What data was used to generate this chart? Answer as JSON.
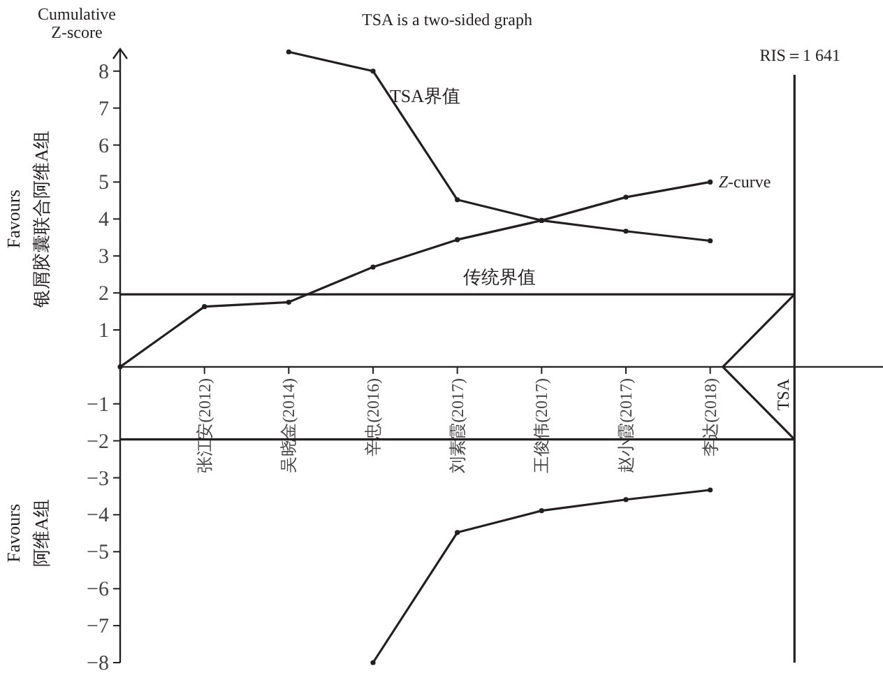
{
  "chart_data": {
    "type": "line",
    "title": "TSA is a two-sided graph",
    "ylabel": "Cumulative Z-score",
    "annotations": [
      "Favours 银屑胶囊联合阿维A组",
      "Favours 阿维A组",
      "TSA"
    ],
    "categories": [
      null,
      "张江安(2012)",
      "吴晓金(2014)",
      "辛忠(2016)",
      "刘素霞(2017)",
      "王俊伟(2017)",
      "赵小霞(2017)",
      "李达(2018)",
      null
    ],
    "ylim": [
      -8,
      8.6
    ],
    "yticks": [
      -8,
      -7,
      -6,
      -5,
      -4,
      -3,
      -2,
      -1,
      1,
      2,
      3,
      4,
      5,
      6,
      7,
      8
    ],
    "series": [
      {
        "name": "Z-curve",
        "color": "#231f20",
        "values": [
          0,
          1.63,
          1.75,
          2.7,
          3.44,
          3.96,
          4.59,
          5.0,
          null
        ]
      },
      {
        "name": "TSA界值",
        "color": "#231f20",
        "values": [
          null,
          null,
          8.52,
          8.0,
          4.52,
          3.96,
          3.67,
          3.41,
          null
        ]
      },
      {
        "color": "#231f20",
        "values": [
          null,
          null,
          null,
          -8.0,
          -4.48,
          -3.89,
          -3.59,
          -3.33,
          null
        ]
      }
    ],
    "ref_lines": [
      {
        "axis": "y",
        "value": 1.96,
        "label": "传统界值"
      },
      {
        "axis": "y",
        "value": -1.96
      },
      {
        "axis": "x",
        "label": "RIS＝1 641"
      }
    ],
    "marker": "circle"
  }
}
